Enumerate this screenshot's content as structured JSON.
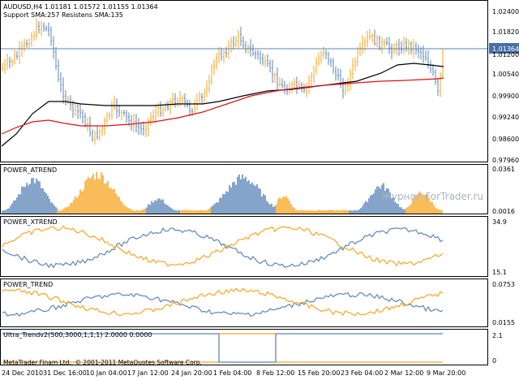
{
  "main_panel": {
    "header_line1": "AUDUSD,H4  1.01181 1.01572 1.01155 1.01364",
    "header_line2": "Support SMA:257 Resistens SMA:135",
    "price_ticks": [
      "1.02400",
      "1.01820",
      "1.01200",
      "1.00540",
      "0.99900",
      "0.99240",
      "0.98600",
      "0.97960"
    ],
    "current_price": "1.01364",
    "colors": {
      "bull_bar": "#f5a623",
      "bear_bar": "#5b86b8",
      "support_sma": "#000000",
      "resistance_sma": "#e01010",
      "price_tag_bg": "#4a6fa5"
    }
  },
  "power_atrend_panel": {
    "label": "POWER_ATREND",
    "ticks": [
      "0.0361",
      "0.0016"
    ],
    "watermark": "Журнал ForTrader.ru"
  },
  "power_xtrend_panel": {
    "label": "POWER_XTREND",
    "ticks": [
      "34.9",
      "15.1"
    ]
  },
  "power_trend_panel": {
    "label": "POWER_TREND",
    "ticks": [
      "0.0753",
      "0.0155"
    ]
  },
  "ultra_trend_panel": {
    "label": "Ultra_Trendv2(500,3000,1,1,1) 2.0000 0.0000",
    "ticks": [
      "2.1",
      "0"
    ],
    "copyright": "MetaTrader Finam Ltd., © 2001-2011 MetaQuotes Software Corp."
  },
  "time_axis": {
    "labels": [
      "24 Dec 2010",
      "31 Dec 16:00",
      "10 Jan 04:00",
      "17 Jan 12:00",
      "24 Jan 20:00",
      "1 Feb 04:00",
      "8 Feb 12:00",
      "15 Feb 20:00",
      "23 Feb 04:00",
      "2 Mar 12:00",
      "9 Mar 20:00"
    ]
  }
}
